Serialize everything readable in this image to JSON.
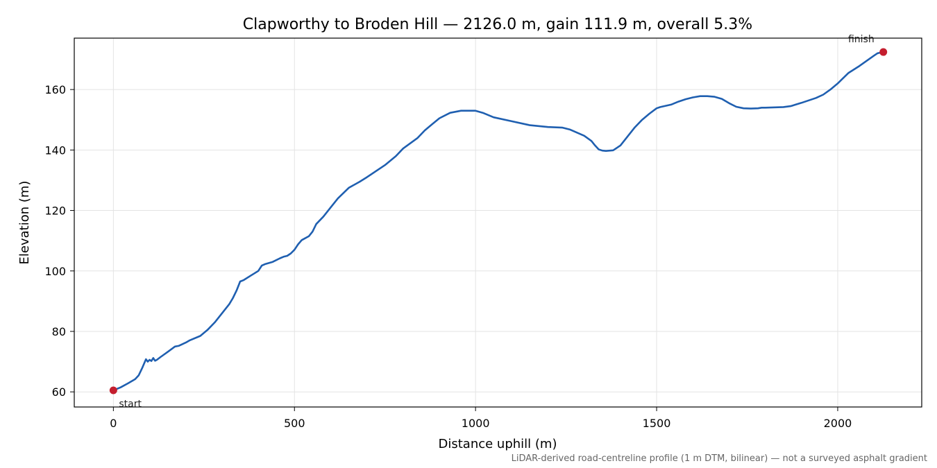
{
  "chart_data": {
    "type": "line",
    "title": "Clapworthy to Broden Hill — 2126.0 m, gain 111.9 m, overall 5.3%",
    "xlabel": "Distance uphill (m)",
    "ylabel": "Elevation (m)",
    "xlim": [
      -108,
      2232
    ],
    "ylim": [
      55,
      177
    ],
    "xticks": [
      0,
      500,
      1000,
      1500,
      2000
    ],
    "yticks": [
      60,
      80,
      100,
      120,
      140,
      160
    ],
    "grid": true,
    "series": [
      {
        "color": "#1f5fb0",
        "x": [
          0,
          20,
          40,
          60,
          70,
          80,
          90,
          95,
          100,
          105,
          110,
          115,
          120,
          130,
          150,
          170,
          180,
          200,
          210,
          240,
          260,
          280,
          300,
          320,
          330,
          340,
          350,
          360,
          380,
          400,
          410,
          420,
          440,
          460,
          470,
          480,
          490,
          500,
          510,
          520,
          540,
          550,
          560,
          580,
          600,
          620,
          650,
          680,
          700,
          750,
          780,
          800,
          840,
          860,
          870,
          880,
          900,
          930,
          960,
          1000,
          1020,
          1050,
          1100,
          1150,
          1200,
          1240,
          1260,
          1300,
          1320,
          1330,
          1340,
          1350,
          1360,
          1380,
          1400,
          1420,
          1440,
          1460,
          1480,
          1500,
          1510,
          1540,
          1560,
          1580,
          1600,
          1620,
          1640,
          1660,
          1680,
          1700,
          1720,
          1740,
          1760,
          1780,
          1790,
          1800,
          1850,
          1870,
          1900,
          1940,
          1960,
          1980,
          2000,
          2010,
          2030,
          2060,
          2080,
          2100,
          2110,
          2126
        ],
        "y": [
          60.5,
          61.5,
          62.8,
          64.2,
          65.5,
          68,
          70.8,
          70,
          70.6,
          70.2,
          71.2,
          70.3,
          70.6,
          71.5,
          73.2,
          75,
          75.2,
          76.3,
          77,
          78.5,
          80.5,
          83,
          86,
          89,
          91,
          93.5,
          96.5,
          97,
          98.5,
          100,
          101.8,
          102.3,
          103,
          104.2,
          104.7,
          105,
          105.8,
          107,
          108.8,
          110.2,
          111.5,
          113,
          115.5,
          118,
          121,
          124,
          127.5,
          129.5,
          131,
          135,
          138,
          140.5,
          144,
          146.5,
          147.5,
          148.5,
          150.5,
          152.3,
          153,
          153,
          152.3,
          150.8,
          149.5,
          148.2,
          147.6,
          147.4,
          146.8,
          144.7,
          143,
          141.5,
          140.2,
          139.8,
          139.7,
          139.9,
          141.5,
          144.5,
          147.5,
          150,
          152,
          153.8,
          154.2,
          155,
          156,
          156.8,
          157.4,
          157.8,
          157.8,
          157.6,
          156.9,
          155.5,
          154.3,
          153.8,
          153.7,
          153.8,
          154,
          154,
          154.2,
          154.5,
          155.6,
          157.2,
          158.3,
          160,
          162,
          163.2,
          165.5,
          167.8,
          169.5,
          171.2,
          172,
          172.4
        ]
      }
    ],
    "points": [
      {
        "label": "start",
        "x": 0,
        "y": 60.5,
        "color": "#c41e2e"
      },
      {
        "label": "finish",
        "x": 2126,
        "y": 172.4,
        "color": "#c41e2e"
      }
    ],
    "note": "LiDAR-derived road-centreline profile (1 m DTM, bilinear) — not a surveyed asphalt gradient"
  }
}
